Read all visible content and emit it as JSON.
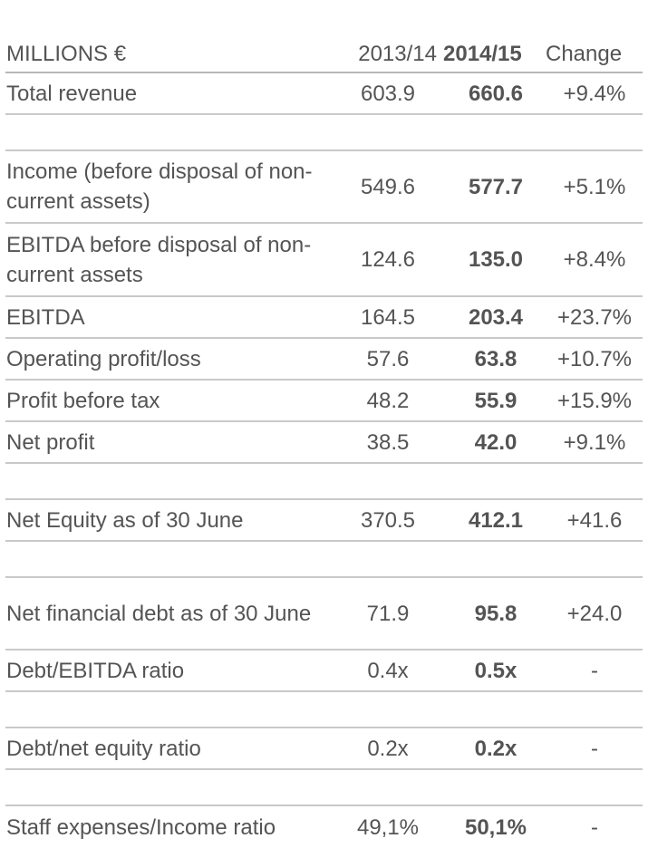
{
  "header": {
    "label": "MILLIONS €",
    "prev_year": "2013/14",
    "curr_year": "2014/15",
    "change": "Change"
  },
  "rows": [
    {
      "label": "Total revenue",
      "prev": "603.9",
      "curr": "660.6",
      "change": "+9.4%"
    },
    {
      "label": "Income (before disposal of non-current assets)",
      "prev": "549.6",
      "curr": "577.7",
      "change": "+5.1%"
    },
    {
      "label": "EBITDA before disposal of non-current assets",
      "prev": "124.6",
      "curr": "135.0",
      "change": "+8.4%"
    },
    {
      "label": "EBITDA",
      "prev": "164.5",
      "curr": "203.4",
      "change": "+23.7%"
    },
    {
      "label": "Operating profit/loss",
      "prev": "57.6",
      "curr": "63.8",
      "change": "+10.7%"
    },
    {
      "label": "Profit before tax",
      "prev": "48.2",
      "curr": "55.9",
      "change": "+15.9%"
    },
    {
      "label": "Net profit",
      "prev": "38.5",
      "curr": "42.0",
      "change": "+9.1%"
    },
    {
      "label": "Net Equity as of 30 June",
      "prev": "370.5",
      "curr": "412.1",
      "change": "+41.6"
    },
    {
      "label": "Net financial debt as of 30 June",
      "prev": "71.9",
      "curr": "95.8",
      "change": "+24.0"
    },
    {
      "label": "Debt/EBITDA ratio",
      "prev": "0.4x",
      "curr": "0.5x",
      "change": "-"
    },
    {
      "label": "Debt/net equity ratio",
      "prev": "0.2x",
      "curr": "0.2x",
      "change": "-"
    },
    {
      "label": "Staff expenses/Income ratio",
      "prev": "49,1%",
      "curr": "50,1%",
      "change": "-"
    }
  ]
}
